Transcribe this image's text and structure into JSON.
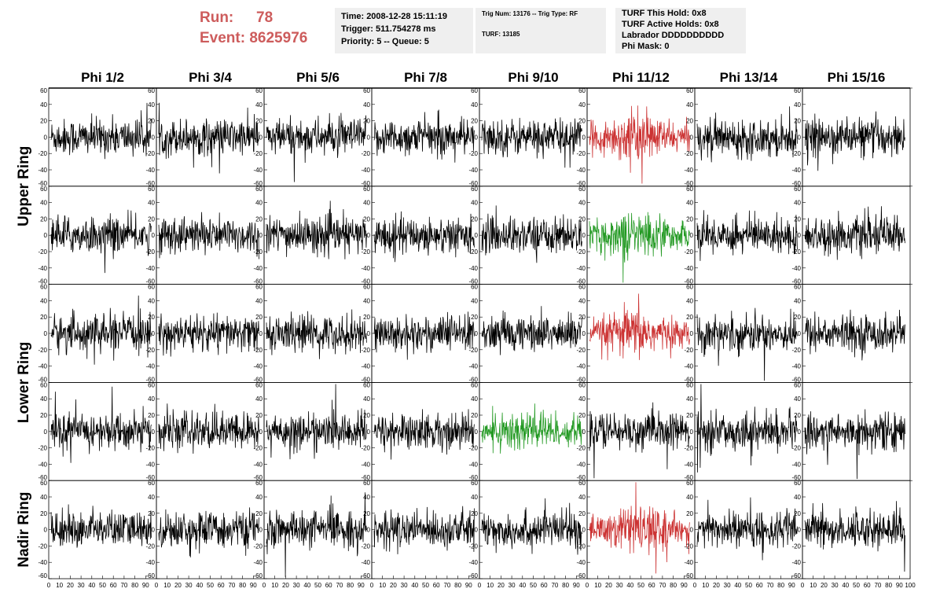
{
  "header": {
    "run_label": "Run:",
    "run_value": "78",
    "event_label": "Event:",
    "event_value": "8625976",
    "box1": [
      "Time: 2008-12-28 15:11:19",
      "Trigger: 511.754278 ms",
      "Priority: 5 -- Queue: 5"
    ],
    "box2_line1": "Trig Num: 13176 -- Trig Type: RF",
    "box2_line2": "TURF: 13185",
    "box3": [
      "TURF This Hold: 0x8",
      "TURF Active Holds: 0x8",
      "Labrador DDDDDDDDDD",
      "Phi Mask: 0"
    ]
  },
  "chart_data": {
    "type": "line",
    "columns": [
      "Phi 1/2",
      "Phi 3/4",
      "Phi 5/6",
      "Phi 7/8",
      "Phi 9/10",
      "Phi 11/12",
      "Phi 13/14",
      "Phi 15/16"
    ],
    "rows": [
      {
        "label": "Upper Ring",
        "panels": 2
      },
      {
        "label": "Lower Ring",
        "panels": 2
      },
      {
        "label": "Nadir Ring",
        "panels": 1
      }
    ],
    "xlim": [
      0,
      100
    ],
    "x_ticks": [
      "0",
      "10",
      "20",
      "30",
      "40",
      "50",
      "60",
      "70",
      "80",
      "90",
      "100"
    ],
    "ylim": [
      -60,
      60
    ],
    "y_ticks": [
      "60",
      "40",
      "20",
      "0",
      "-20",
      "-40",
      "-60"
    ],
    "highlighted": [
      {
        "panel_row": 0,
        "column": 5,
        "color": "#cc3333"
      },
      {
        "panel_row": 1,
        "column": 5,
        "color": "#229922"
      },
      {
        "panel_row": 2,
        "column": 5,
        "color": "#cc3333"
      },
      {
        "panel_row": 3,
        "column": 4,
        "color": "#229922"
      },
      {
        "panel_row": 4,
        "column": 5,
        "color": "#cc3333"
      }
    ],
    "default_color": "#000000"
  }
}
